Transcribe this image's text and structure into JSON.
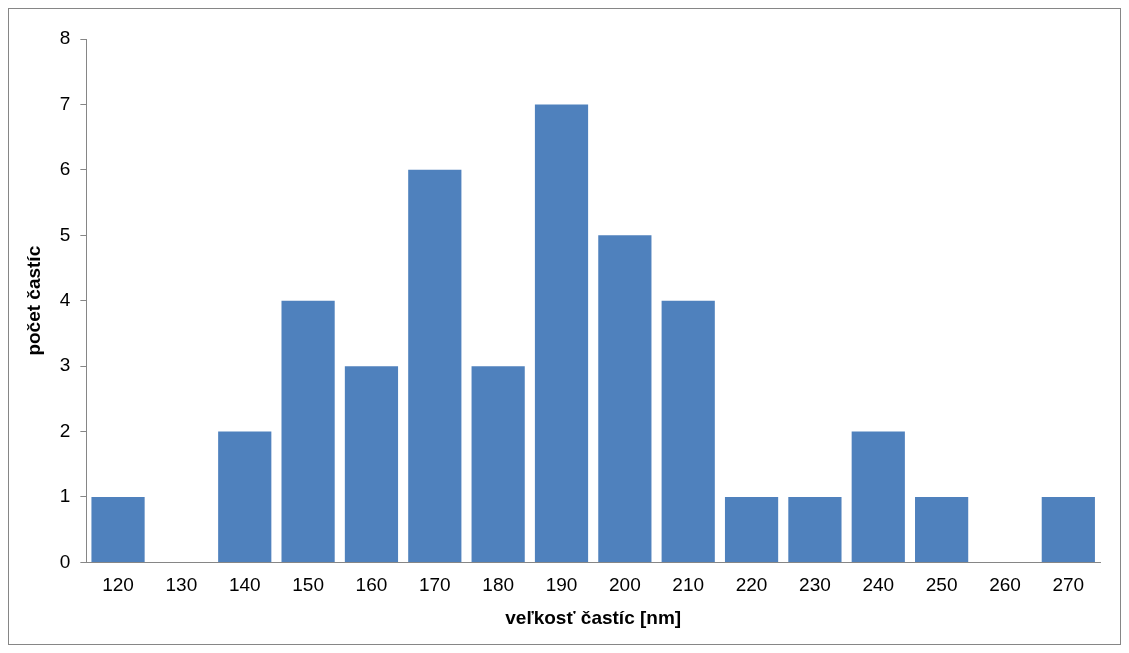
{
  "chart_data": {
    "type": "bar",
    "xlabel": "veľkosť častíc [nm]",
    "ylabel": "počet častíc",
    "categories": [
      "120",
      "130",
      "140",
      "150",
      "160",
      "170",
      "180",
      "190",
      "200",
      "210",
      "220",
      "230",
      "240",
      "250",
      "260",
      "270"
    ],
    "values": [
      1,
      0,
      2,
      4,
      3,
      6,
      3,
      7,
      5,
      4,
      1,
      1,
      2,
      1,
      0,
      1
    ],
    "color": "#4f81bd",
    "ylim": [
      0,
      8
    ],
    "yticks": [
      0,
      1,
      2,
      3,
      4,
      5,
      6,
      7,
      8
    ],
    "grid": false,
    "legend": false
  }
}
